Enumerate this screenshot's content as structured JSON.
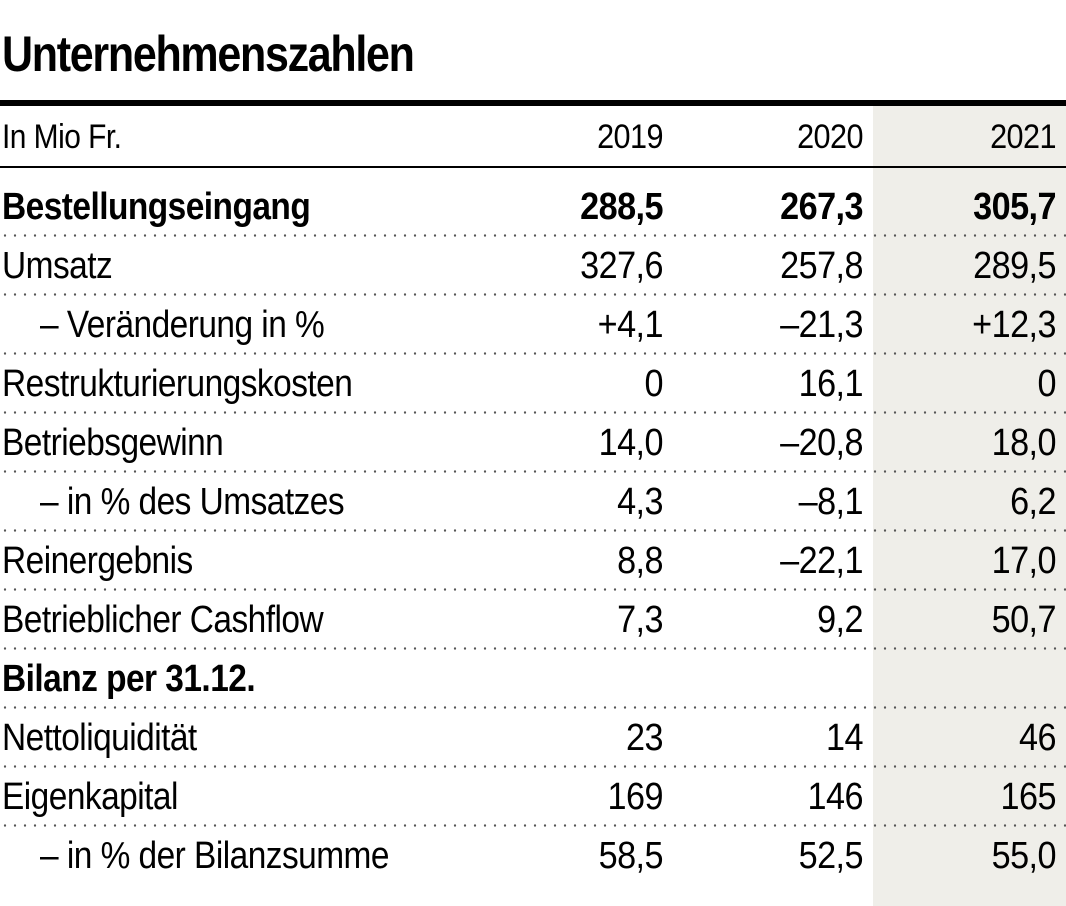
{
  "title": "Unternehmenszahlen",
  "table": {
    "unit_label": "In Mio Fr.",
    "columns": [
      "2019",
      "2020",
      "2021"
    ],
    "rows": [
      {
        "label": "Bestellungseingang",
        "values": [
          "288,5",
          "267,3",
          "305,7"
        ],
        "bold": true
      },
      {
        "label": "Umsatz",
        "values": [
          "327,6",
          "257,8",
          "289,5"
        ]
      },
      {
        "label": "– Veränderung in %",
        "values": [
          "+4,1",
          "–21,3",
          "+12,3"
        ],
        "indent": true
      },
      {
        "label": "Restrukturierungskosten",
        "values": [
          "0",
          "16,1",
          "0"
        ]
      },
      {
        "label": "Betriebsgewinn",
        "values": [
          "14,0",
          "–20,8",
          "18,0"
        ]
      },
      {
        "label": "– in % des Umsatzes",
        "values": [
          "4,3",
          "–8,1",
          "6,2"
        ],
        "indent": true
      },
      {
        "label": "Reinergebnis",
        "values": [
          "8,8",
          "–22,1",
          "17,0"
        ]
      },
      {
        "label": "Betrieblicher Cashflow",
        "values": [
          "7,3",
          "9,2",
          "50,7"
        ]
      },
      {
        "label": "Bilanz per 31.12.",
        "values": [
          "",
          "",
          ""
        ],
        "bold": true
      },
      {
        "label": "Nettoliquidität",
        "values": [
          "23",
          "14",
          "46"
        ]
      },
      {
        "label": "Eigenkapital",
        "values": [
          "169",
          "146",
          "165"
        ]
      },
      {
        "label": "– in % der Bilanzsumme",
        "values": [
          "58,5",
          "52,5",
          "55,0"
        ],
        "indent": true
      }
    ]
  },
  "colors": {
    "highlight_column_bg": "#efeee9",
    "rule": "#000000",
    "text": "#000000"
  }
}
